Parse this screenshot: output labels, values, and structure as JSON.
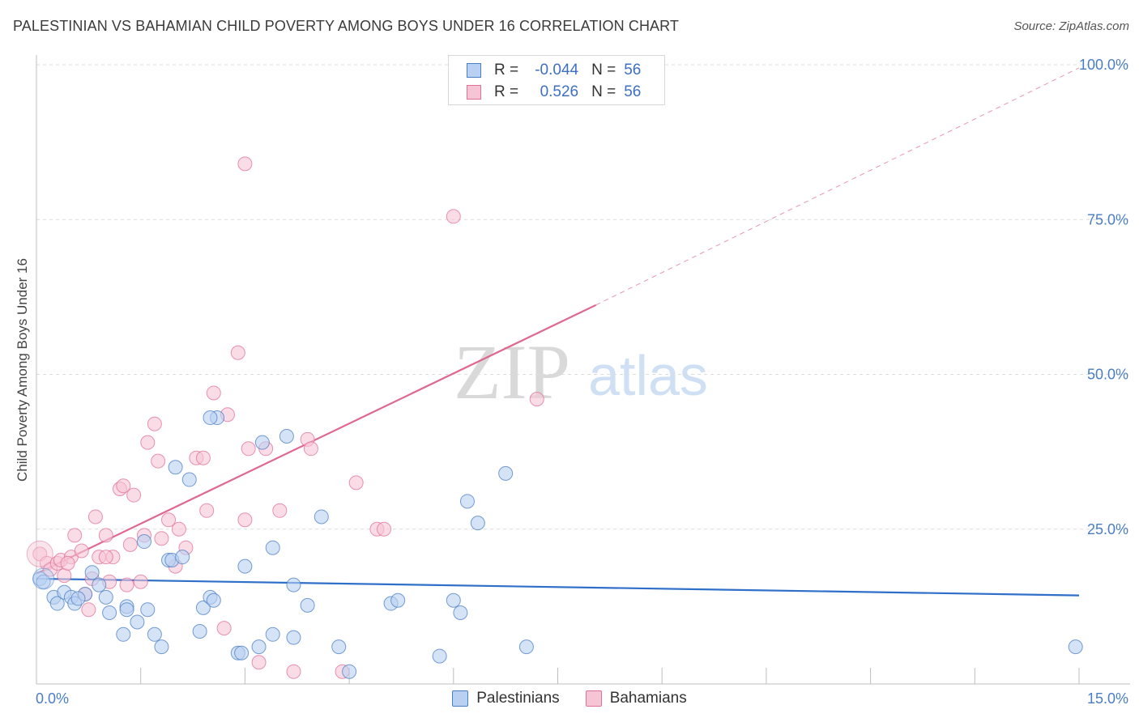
{
  "title": "PALESTINIAN VS BAHAMIAN CHILD POVERTY AMONG BOYS UNDER 16 CORRELATION CHART",
  "source": "Source: ZipAtlas.com",
  "watermark": {
    "zip": "ZIP",
    "atlas": "atlas"
  },
  "colors": {
    "blue": "#4a7ec4",
    "blue_fill": "#b9d0f2",
    "blue_line": "#2f6fc9",
    "pink": "#e07098",
    "pink_fill": "#f6c5d5",
    "pink_line": "#e06890",
    "grid": "#dcdcdc"
  },
  "legend": {
    "rows": [
      {
        "r_label": "R =",
        "r_value": "-0.044",
        "n_label": "N =",
        "n_value": "56",
        "color": "blue"
      },
      {
        "r_label": "R =",
        "r_value": "0.526",
        "n_label": "N =",
        "n_value": "56",
        "color": "pink"
      }
    ]
  },
  "bottom_legend": [
    {
      "label": "Palestinians",
      "color": "blue"
    },
    {
      "label": "Bahamians",
      "color": "pink"
    }
  ],
  "chart_data": {
    "type": "scatter",
    "title": "PALESTINIAN VS BAHAMIAN CHILD POVERTY AMONG BOYS UNDER 16 CORRELATION CHART",
    "xlabel": "",
    "ylabel": "Child Poverty Among Boys Under 16",
    "xlim": [
      0,
      15
    ],
    "ylim": [
      0,
      100
    ],
    "x_tick_labels": [
      {
        "value": 0,
        "label": "0.0%"
      },
      {
        "value": 15,
        "label": "15.0%"
      }
    ],
    "y_tick_labels": [
      {
        "value": 25,
        "label": "25.0%"
      },
      {
        "value": 50,
        "label": "50.0%"
      },
      {
        "value": 75,
        "label": "75.0%"
      },
      {
        "value": 100,
        "label": "100.0%"
      }
    ],
    "grid": true,
    "legend_position": "top-center",
    "series": [
      {
        "name": "Palestinians",
        "color": "blue",
        "r": -0.044,
        "n": 56,
        "trend": {
          "x": [
            0,
            15
          ],
          "y": [
            17.0,
            14.3
          ]
        },
        "points": [
          [
            0.05,
            17.0
          ],
          [
            0.1,
            16.5
          ],
          [
            0.25,
            14.0
          ],
          [
            0.3,
            13.0
          ],
          [
            0.4,
            14.8
          ],
          [
            0.5,
            14.0
          ],
          [
            0.55,
            13.0
          ],
          [
            0.7,
            14.5
          ],
          [
            0.8,
            18.0
          ],
          [
            0.9,
            16.0
          ],
          [
            1.0,
            14.0
          ],
          [
            1.05,
            11.5
          ],
          [
            1.25,
            8.0
          ],
          [
            1.3,
            12.5
          ],
          [
            1.45,
            10.0
          ],
          [
            1.6,
            12.0
          ],
          [
            1.7,
            8.0
          ],
          [
            1.8,
            6.0
          ],
          [
            1.9,
            20.0
          ],
          [
            1.95,
            20.0
          ],
          [
            2.1,
            20.5
          ],
          [
            2.0,
            35.0
          ],
          [
            2.2,
            33.0
          ],
          [
            2.35,
            8.5
          ],
          [
            2.4,
            12.3
          ],
          [
            2.5,
            14.0
          ],
          [
            2.55,
            13.5
          ],
          [
            2.6,
            43.0
          ],
          [
            2.9,
            5.0
          ],
          [
            2.95,
            5.0
          ],
          [
            3.0,
            19.0
          ],
          [
            3.2,
            6.0
          ],
          [
            3.25,
            39.0
          ],
          [
            3.4,
            22.0
          ],
          [
            3.4,
            8.0
          ],
          [
            3.6,
            40.0
          ],
          [
            3.7,
            7.5
          ],
          [
            3.7,
            16.0
          ],
          [
            3.9,
            12.7
          ],
          [
            4.1,
            27.0
          ],
          [
            4.35,
            6.0
          ],
          [
            4.5,
            2.0
          ],
          [
            5.1,
            13.0
          ],
          [
            5.2,
            13.5
          ],
          [
            5.8,
            4.5
          ],
          [
            6.0,
            13.5
          ],
          [
            6.1,
            11.5
          ],
          [
            6.2,
            29.5
          ],
          [
            6.35,
            26.0
          ],
          [
            6.75,
            34.0
          ],
          [
            7.05,
            6.0
          ],
          [
            14.95,
            6.0
          ],
          [
            2.5,
            43.0
          ],
          [
            1.55,
            23.0
          ],
          [
            0.6,
            13.8
          ],
          [
            1.3,
            12.0
          ]
        ]
      },
      {
        "name": "Bahamians",
        "color": "pink",
        "r": 0.526,
        "n": 56,
        "trend": {
          "x": [
            0,
            8.05
          ],
          "y": [
            17.8,
            61.2
          ]
        },
        "trend_extension": {
          "x": [
            8.05,
            15
          ],
          "y": [
            61.2,
            99.5
          ]
        },
        "points": [
          [
            0.05,
            21.0
          ],
          [
            0.15,
            19.5
          ],
          [
            0.2,
            18.5
          ],
          [
            0.3,
            19.5
          ],
          [
            0.35,
            20.0
          ],
          [
            0.4,
            17.5
          ],
          [
            0.5,
            20.5
          ],
          [
            0.55,
            24.0
          ],
          [
            0.65,
            21.5
          ],
          [
            0.7,
            14.5
          ],
          [
            0.75,
            12.0
          ],
          [
            0.8,
            17.0
          ],
          [
            0.85,
            27.0
          ],
          [
            0.9,
            20.5
          ],
          [
            1.0,
            24.0
          ],
          [
            1.05,
            16.5
          ],
          [
            1.1,
            20.5
          ],
          [
            1.2,
            31.5
          ],
          [
            1.25,
            32.0
          ],
          [
            1.3,
            16.0
          ],
          [
            1.4,
            30.5
          ],
          [
            1.5,
            16.5
          ],
          [
            1.55,
            24.0
          ],
          [
            1.6,
            39.0
          ],
          [
            1.7,
            42.0
          ],
          [
            1.75,
            36.0
          ],
          [
            1.8,
            23.5
          ],
          [
            1.9,
            26.5
          ],
          [
            2.0,
            19.0
          ],
          [
            2.05,
            25.0
          ],
          [
            2.15,
            22.0
          ],
          [
            2.3,
            36.5
          ],
          [
            2.4,
            36.5
          ],
          [
            2.45,
            28.0
          ],
          [
            2.55,
            47.0
          ],
          [
            2.7,
            9.0
          ],
          [
            2.75,
            43.5
          ],
          [
            2.9,
            53.5
          ],
          [
            3.0,
            26.5
          ],
          [
            3.05,
            38.0
          ],
          [
            3.2,
            3.5
          ],
          [
            3.3,
            38.0
          ],
          [
            3.5,
            28.0
          ],
          [
            3.7,
            2.0
          ],
          [
            3.9,
            39.5
          ],
          [
            3.95,
            38.0
          ],
          [
            4.4,
            2.0
          ],
          [
            4.6,
            32.5
          ],
          [
            4.9,
            25.0
          ],
          [
            5.0,
            25.0
          ],
          [
            6.0,
            75.5
          ],
          [
            3.0,
            84.0
          ],
          [
            7.2,
            46.0
          ],
          [
            1.0,
            20.5
          ],
          [
            0.45,
            19.5
          ],
          [
            1.35,
            22.5
          ]
        ]
      }
    ]
  }
}
